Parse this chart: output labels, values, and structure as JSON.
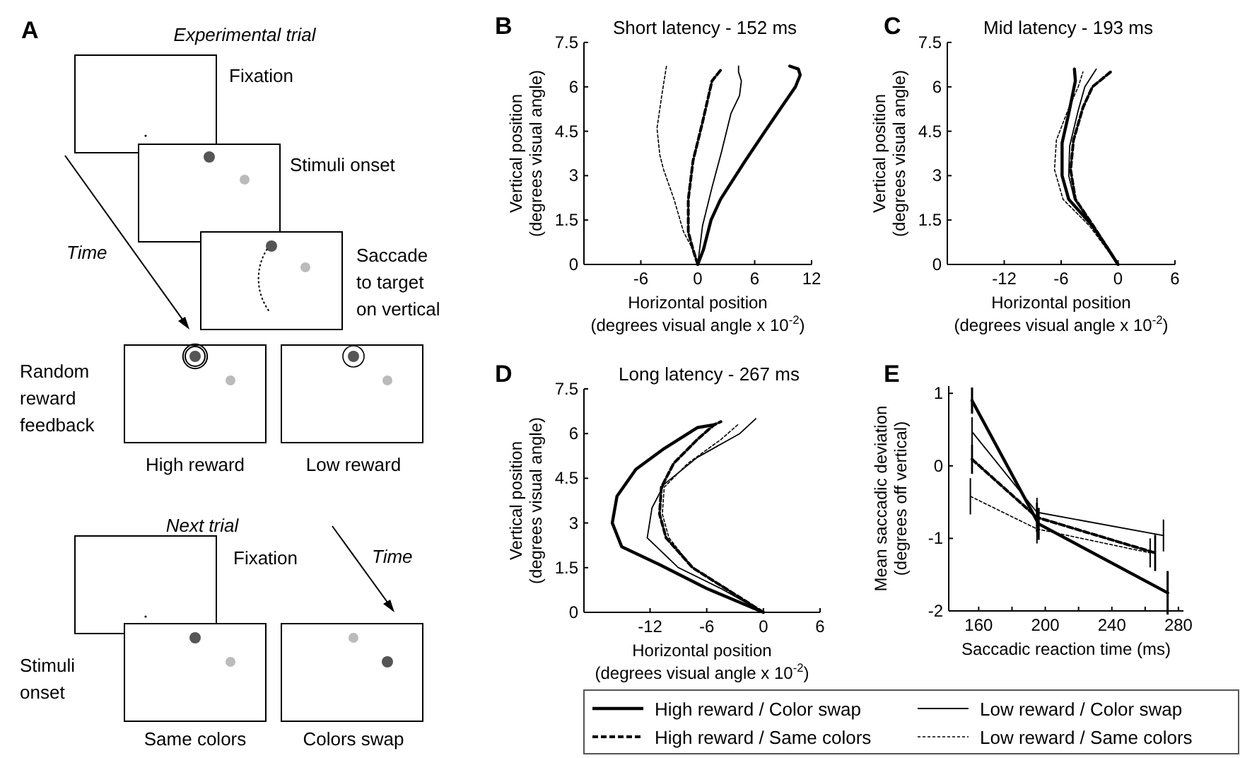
{
  "chart_data": [
    {
      "type": "other",
      "title": "Experimental trial",
      "annotations": [
        "A",
        "Fixation",
        "Stimuli onset",
        "Saccade\nto target\non vertical",
        "Time",
        "Random\nreward\nfeedback",
        "High reward",
        "Low reward",
        "Next trial",
        "Fixation",
        "Time",
        "Stimuli\nonset",
        "Same colors",
        "Colors swap"
      ]
    },
    {
      "type": "line",
      "title": "Short latency - 152 ms",
      "annotations": [
        "B"
      ],
      "xlabel": "Horizontal position\n(degrees visual angle x 10$^{-2}$)",
      "ylabel": "Vertical position\n(degrees visual angle)",
      "xlim": [
        -12,
        12
      ],
      "xticks": [
        -6,
        0,
        6,
        12
      ],
      "ylim": [
        0,
        7.5
      ],
      "yticks": [
        0,
        1.5,
        3,
        4.5,
        6,
        7.5
      ],
      "series": [
        {
          "color": "#000000",
          "line_style": "solid",
          "x": [
            0,
            0.6,
            1.4,
            2.4,
            4,
            5,
            7.1,
            8.8,
            10.3,
            10.8,
            10.6,
            9.7
          ],
          "values": [
            0,
            0.5,
            1.5,
            2.2,
            3,
            3.5,
            4.5,
            5.3,
            6,
            6.4,
            6.6,
            6.7
          ]
        },
        {
          "color": "#000000",
          "line_style": "solid",
          "x": [
            0,
            0.5,
            1.5,
            2.5,
            3.5,
            4.4,
            4.6,
            4.3,
            4.3
          ],
          "values": [
            0,
            1.3,
            2.6,
            3.8,
            5.1,
            5.7,
            6.2,
            6.5,
            6.7
          ]
        },
        {
          "color": "#000000",
          "line_style": "dashed",
          "x": [
            0,
            -0.5,
            -1,
            -1,
            -0.5,
            0.5,
            1.5,
            2.5
          ],
          "values": [
            0,
            0.5,
            1.1,
            2.2,
            3.5,
            4.8,
            6.2,
            6.6
          ]
        },
        {
          "color": "#000000",
          "line_style": "dashed",
          "x": [
            0,
            -0.5,
            -1.5,
            -2.5,
            -3.6,
            -4,
            -4.3,
            -3.8,
            -3.3
          ],
          "values": [
            0,
            0.5,
            1.1,
            2.2,
            3.2,
            3.7,
            4.6,
            5.7,
            6.7
          ]
        }
      ]
    },
    {
      "type": "line",
      "title": "Mid latency - 193 ms",
      "annotations": [
        "C"
      ],
      "xlabel": "Horizontal position\n(degrees visual angle x 10$^{-2}$)",
      "ylabel": "Vertical position\n(degrees visual angle)",
      "xlim": [
        -18,
        6
      ],
      "xticks": [
        -12,
        -6,
        0,
        6
      ],
      "ylim": [
        0,
        7.5
      ],
      "yticks": [
        0,
        1.5,
        3,
        4.5,
        6,
        7.5
      ],
      "series": [
        {
          "color": "#000000",
          "line_style": "solid",
          "x": [
            0,
            -1,
            -2.7,
            -5.2,
            -5.9,
            -5.9,
            -5.2,
            -4.5,
            -4.6
          ],
          "values": [
            0,
            0.5,
            1.3,
            2.2,
            3,
            4.1,
            5.1,
            6.2,
            6.6
          ]
        },
        {
          "color": "#000000",
          "line_style": "solid",
          "x": [
            0,
            -2.6,
            -4.6,
            -5.2,
            -5.1,
            -4.2,
            -3.5,
            -2.3
          ],
          "values": [
            0,
            1.3,
            2.2,
            3,
            4,
            5.2,
            6,
            6.6
          ]
        },
        {
          "color": "#000000",
          "line_style": "dashed",
          "x": [
            0,
            -2.6,
            -4.5,
            -5,
            -4.7,
            -3.7,
            -2.7,
            -0.8
          ],
          "values": [
            0,
            1.3,
            2.2,
            3.2,
            4.2,
            5.3,
            6,
            6.5
          ]
        },
        {
          "color": "#000000",
          "line_style": "dashed",
          "x": [
            0,
            -3,
            -5.8,
            -6.7,
            -6.5,
            -5.3,
            -4.2,
            -3.7
          ],
          "values": [
            0,
            1.3,
            2.2,
            3.2,
            4.2,
            5.2,
            6,
            6.5
          ]
        }
      ]
    },
    {
      "type": "line",
      "title": "Long latency - 267 ms",
      "annotations": [
        "D"
      ],
      "xlabel": "Horizontal position\n(degrees visual angle x 10$^{-2}$)",
      "ylabel": "Vertical position\n(degrees visual angle)",
      "xlim": [
        -19,
        6
      ],
      "xticks": [
        -12,
        -6,
        0,
        6
      ],
      "ylim": [
        0,
        7.5
      ],
      "yticks": [
        0,
        1.5,
        3,
        4.5,
        6,
        7.5
      ],
      "series": [
        {
          "color": "#000000",
          "line_style": "solid",
          "x": [
            0,
            -6,
            -11,
            -15,
            -16,
            -15.5,
            -13.5,
            -10.5,
            -7,
            -5.2
          ],
          "values": [
            0,
            0.8,
            1.6,
            2.2,
            3,
            3.9,
            4.8,
            5.5,
            6.2,
            6.3
          ]
        },
        {
          "color": "#000000",
          "line_style": "solid",
          "x": [
            0,
            -4.5,
            -9,
            -12.3,
            -11.8,
            -10.5,
            -7,
            -2.5,
            -0.8
          ],
          "values": [
            0,
            0.8,
            1.5,
            2.5,
            3.5,
            4.3,
            5.2,
            6,
            6.5
          ]
        },
        {
          "color": "#000000",
          "line_style": "dashed",
          "x": [
            0,
            -4,
            -7.5,
            -10.3,
            -11,
            -10.8,
            -9.5,
            -7,
            -5.2,
            -4.5
          ],
          "values": [
            0,
            0.8,
            1.5,
            2.5,
            3.3,
            4.2,
            5,
            5.8,
            6.3,
            6.4
          ]
        },
        {
          "color": "#000000",
          "line_style": "dashed",
          "x": [
            0,
            -4,
            -7.5,
            -10,
            -10.7,
            -10.5,
            -8,
            -4.5,
            -2.7
          ],
          "values": [
            0,
            0.8,
            1.5,
            2.5,
            3.3,
            4.2,
            5,
            5.8,
            6.3
          ]
        }
      ]
    },
    {
      "type": "line",
      "annotations": [
        "E"
      ],
      "xlabel": "Saccadic reaction time (ms)",
      "ylabel": "Mean saccadic deviation\n(degrees off vertical)",
      "xlim": [
        142,
        283
      ],
      "xticks": [
        160,
        {
          "value": 180,
          "label": null
        },
        200,
        {
          "value": 220,
          "label": null
        },
        240,
        {
          "value": 260,
          "label": null
        },
        280
      ],
      "ylim": [
        -2,
        1.1
      ],
      "yticks": [
        -2,
        -1,
        0,
        1
      ],
      "legend": "bottom",
      "series": [
        {
          "name": "High reward / Color swap",
          "color": "#000000",
          "line_style": "solid",
          "x": [
            156,
            196,
            273.5
          ],
          "values": [
            0.9,
            -0.8,
            -1.75
          ],
          "errors": [
            0.18,
            0.22,
            0.3
          ]
        },
        {
          "name": "Low reward / Color swap",
          "color": "#000000",
          "line_style": "solid",
          "x": [
            156,
            195,
            271
          ],
          "values": [
            0.47,
            -0.64,
            -0.96
          ],
          "errors": [
            0.2,
            0.2,
            0.22
          ]
        },
        {
          "name": "High reward / Same colors",
          "color": "#000000",
          "line_style": "dashed",
          "x": [
            156,
            195,
            266
          ],
          "values": [
            0.09,
            -0.71,
            -1.2
          ],
          "errors": [
            0.2,
            0.2,
            0.25
          ]
        },
        {
          "name": "Low reward / Same colors",
          "color": "#000000",
          "line_style": "dashed",
          "x": [
            155,
            195,
            263
          ],
          "values": [
            -0.42,
            -0.87,
            -1.2
          ],
          "errors": [
            0.25,
            0.2,
            0.2
          ]
        }
      ]
    }
  ]
}
